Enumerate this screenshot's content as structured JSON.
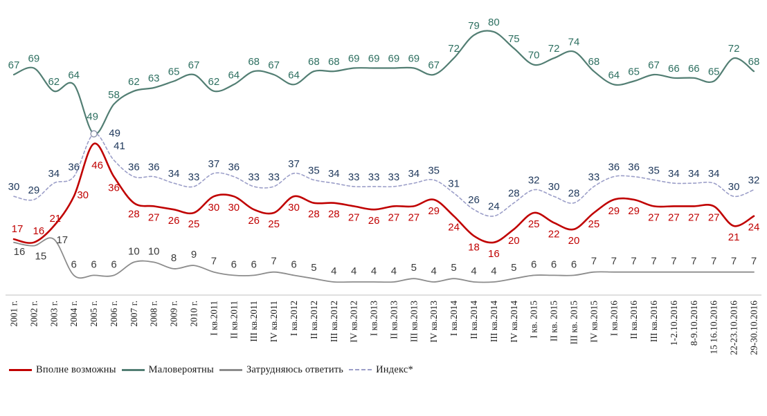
{
  "chart_data": {
    "type": "line",
    "title": "",
    "xlabel": "",
    "ylabel": "",
    "ylim": [
      0,
      88
    ],
    "grid": false,
    "legend_position": "bottom",
    "x_tick_rotation": -90,
    "value_labels_visible": true,
    "categories": [
      "2001 г.",
      "2002 г.",
      "2003 г.",
      "2004 г.",
      "2005 г.",
      "2006 г.",
      "2007 г.",
      "2008 г.",
      "2009 г.",
      "2010 г.",
      "I кв.2011",
      "II кв.2011",
      "III кв.2011",
      "IV кв.2011",
      "I кв.2012",
      "II кв.2012",
      "III кв.2012",
      "IV кв.2012",
      "I кв.2013",
      "II кв.2013",
      "III кв.2013",
      "IV кв.2013",
      "I кв.2014",
      "II кв.2014",
      "III кв.2014",
      "IV кв.2014",
      "I кв. 2015",
      "II кв. 2015",
      "III кв. 2015",
      "IV кв.2015",
      "I кв.2016",
      "II кв.2016",
      "III кв.2016",
      "1-2.10.2016",
      "8-9.10.2016",
      "15 16.10.2016",
      "22-23.10.2016",
      "29-30.10.2016"
    ],
    "series": [
      {
        "name": "Вполне возможны",
        "style": "solid",
        "color": "#c00000",
        "label_color": "#c00000",
        "values": [
          17,
          16,
          21,
          30,
          46,
          36,
          28,
          27,
          26,
          25,
          30,
          30,
          26,
          25,
          30,
          28,
          28,
          27,
          26,
          27,
          27,
          29,
          24,
          18,
          16,
          20,
          25,
          22,
          20,
          25,
          29,
          29,
          27,
          27,
          27,
          27,
          21,
          24
        ]
      },
      {
        "name": "Маловероятны",
        "style": "solid",
        "color": "#527e73",
        "label_color": "#2d6f60",
        "values": [
          67,
          69,
          62,
          64,
          49,
          58,
          62,
          63,
          65,
          67,
          62,
          64,
          68,
          67,
          64,
          68,
          68,
          69,
          69,
          69,
          69,
          67,
          72,
          79,
          80,
          75,
          70,
          72,
          74,
          68,
          64,
          65,
          67,
          66,
          66,
          65,
          72,
          68
        ]
      },
      {
        "name": "Затрудняюсь ответить",
        "style": "solid",
        "color": "#8c8c8c",
        "label_color": "#3a3a3a",
        "values": [
          16,
          15,
          17,
          6,
          6,
          6,
          10,
          10,
          8,
          9,
          7,
          6,
          6,
          7,
          6,
          5,
          4,
          4,
          4,
          4,
          5,
          4,
          5,
          4,
          4,
          5,
          6,
          6,
          6,
          7,
          7,
          7,
          7,
          7,
          7,
          7,
          7,
          7
        ]
      },
      {
        "name": "Индекс*",
        "style": "dashed",
        "color": "#9b9ec8",
        "label_color": "#20395c",
        "values": [
          30,
          29,
          34,
          36,
          49,
          41,
          36,
          36,
          34,
          33,
          37,
          36,
          33,
          33,
          37,
          35,
          34,
          33,
          33,
          33,
          34,
          35,
          31,
          26,
          24,
          28,
          32,
          30,
          28,
          33,
          36,
          36,
          35,
          34,
          34,
          34,
          30,
          32
        ]
      }
    ],
    "annotations": [
      {
        "type": "open-circle-marker",
        "category": "2005 г.",
        "value": 49
      }
    ]
  }
}
